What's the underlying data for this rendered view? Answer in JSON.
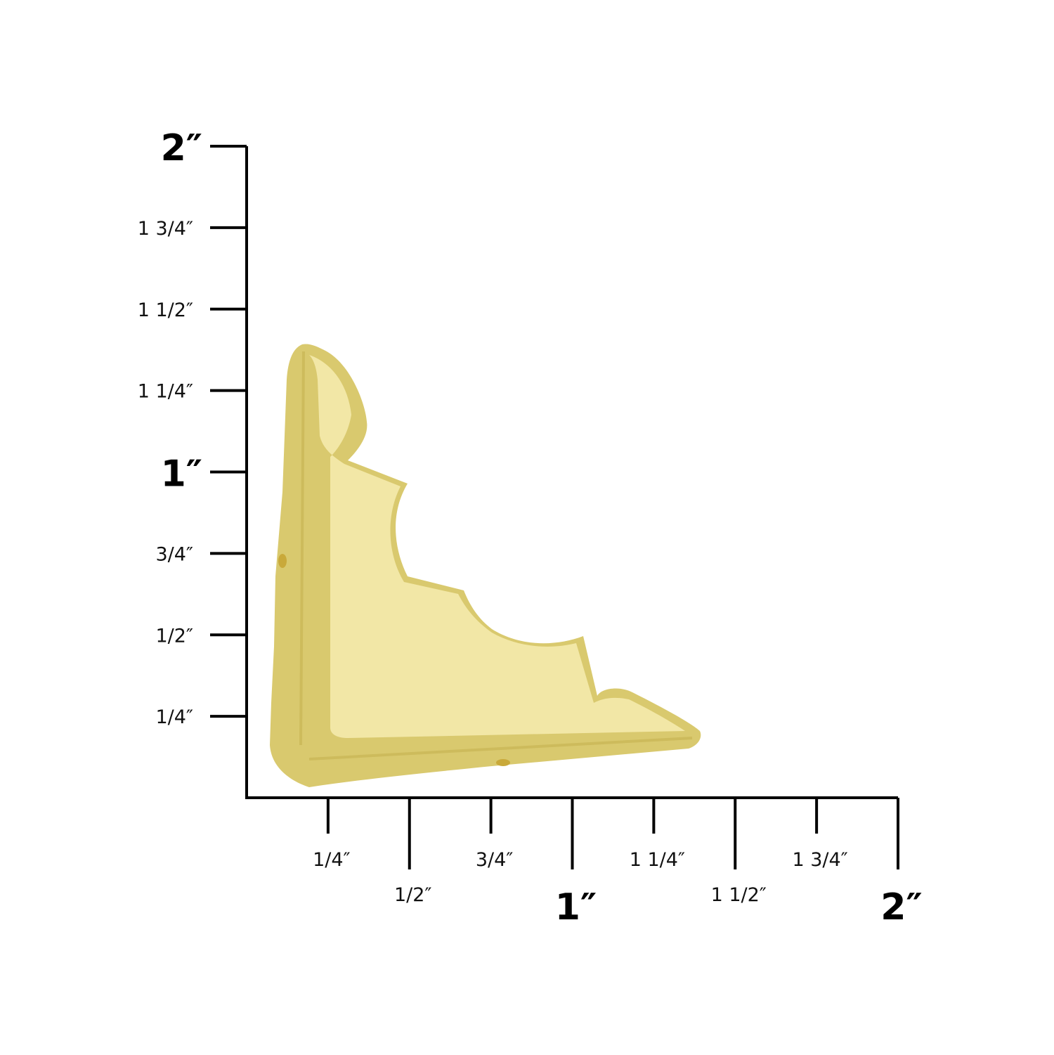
{
  "product": {
    "name_icon": "brass-corner-bracket",
    "color": "#f2e7a6",
    "outline_color": "#d9c96e"
  },
  "vertical_scale": {
    "unit": "inch",
    "labels": [
      "1/4″",
      "1/2″",
      "3/4″",
      "1″",
      "1 1/4″",
      "1 1/2″",
      "1 3/4″",
      "2″"
    ],
    "values": [
      0.25,
      0.5,
      0.75,
      1,
      1.25,
      1.5,
      1.75,
      2
    ]
  },
  "horizontal_scale": {
    "unit": "inch",
    "labels": [
      "1/4″",
      "1/2″",
      "3/4″",
      "1″",
      "1 1/4″",
      "1 1/2″",
      "1 3/4″",
      "2″"
    ],
    "values": [
      0.25,
      0.5,
      0.75,
      1,
      1.25,
      1.5,
      1.75,
      2
    ]
  },
  "scale_color": "#000000"
}
